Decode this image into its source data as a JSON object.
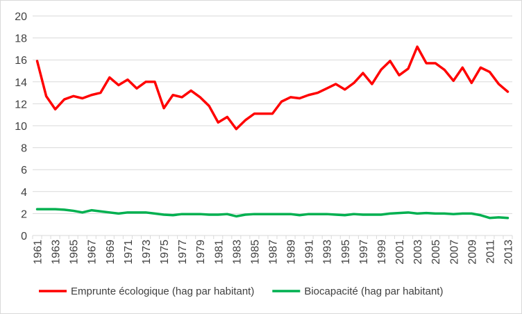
{
  "chart_data": {
    "type": "line",
    "title": "",
    "xlabel": "",
    "ylabel": "",
    "ylim": [
      0,
      20
    ],
    "yticks": [
      0,
      2,
      4,
      6,
      8,
      10,
      12,
      14,
      16,
      18,
      20
    ],
    "x": [
      1961,
      1962,
      1963,
      1964,
      1965,
      1966,
      1967,
      1968,
      1969,
      1970,
      1971,
      1972,
      1973,
      1974,
      1975,
      1976,
      1977,
      1978,
      1979,
      1980,
      1981,
      1982,
      1983,
      1984,
      1985,
      1986,
      1987,
      1988,
      1989,
      1990,
      1991,
      1992,
      1993,
      1994,
      1995,
      1996,
      1997,
      1998,
      1999,
      2000,
      2001,
      2002,
      2003,
      2004,
      2005,
      2006,
      2007,
      2008,
      2009,
      2010,
      2011,
      2012,
      2013
    ],
    "xtick_labels": [
      "1961",
      "1963",
      "1965",
      "1967",
      "1969",
      "1971",
      "1973",
      "1975",
      "1977",
      "1979",
      "1981",
      "1983",
      "1985",
      "1987",
      "1989",
      "1991",
      "1993",
      "1995",
      "1997",
      "1999",
      "2001",
      "2003",
      "2005",
      "2007",
      "2009",
      "2011",
      "2013"
    ],
    "grid": "horizontal",
    "legend_position": "bottom",
    "series": [
      {
        "name": "Emprunte écologique (hag par habitant)",
        "color": "#ff0000",
        "values": [
          15.9,
          12.7,
          11.5,
          12.4,
          12.7,
          12.5,
          12.8,
          13.0,
          14.4,
          13.7,
          14.2,
          13.4,
          14.0,
          14.0,
          11.6,
          12.8,
          12.6,
          13.2,
          12.6,
          11.8,
          10.3,
          10.8,
          9.7,
          10.5,
          11.1,
          11.1,
          11.1,
          12.2,
          12.6,
          12.5,
          12.8,
          13.0,
          13.4,
          13.8,
          13.3,
          13.9,
          14.8,
          13.8,
          15.1,
          15.9,
          14.6,
          15.2,
          17.2,
          15.7,
          15.7,
          15.1,
          14.1,
          15.3,
          13.9,
          15.3,
          14.9,
          13.8,
          13.1
        ]
      },
      {
        "name": "Biocapacité (hag par habitant)",
        "color": "#00b050",
        "values": [
          2.4,
          2.4,
          2.4,
          2.35,
          2.25,
          2.1,
          2.3,
          2.2,
          2.1,
          2.0,
          2.1,
          2.1,
          2.1,
          2.0,
          1.9,
          1.85,
          1.95,
          1.95,
          1.95,
          1.9,
          1.9,
          1.95,
          1.75,
          1.9,
          1.95,
          1.95,
          1.95,
          1.95,
          1.95,
          1.85,
          1.95,
          1.95,
          1.95,
          1.9,
          1.85,
          1.95,
          1.9,
          1.9,
          1.9,
          2.0,
          2.05,
          2.1,
          2.0,
          2.05,
          2.0,
          2.0,
          1.95,
          2.0,
          2.0,
          1.85,
          1.6,
          1.65,
          1.6
        ]
      }
    ]
  }
}
